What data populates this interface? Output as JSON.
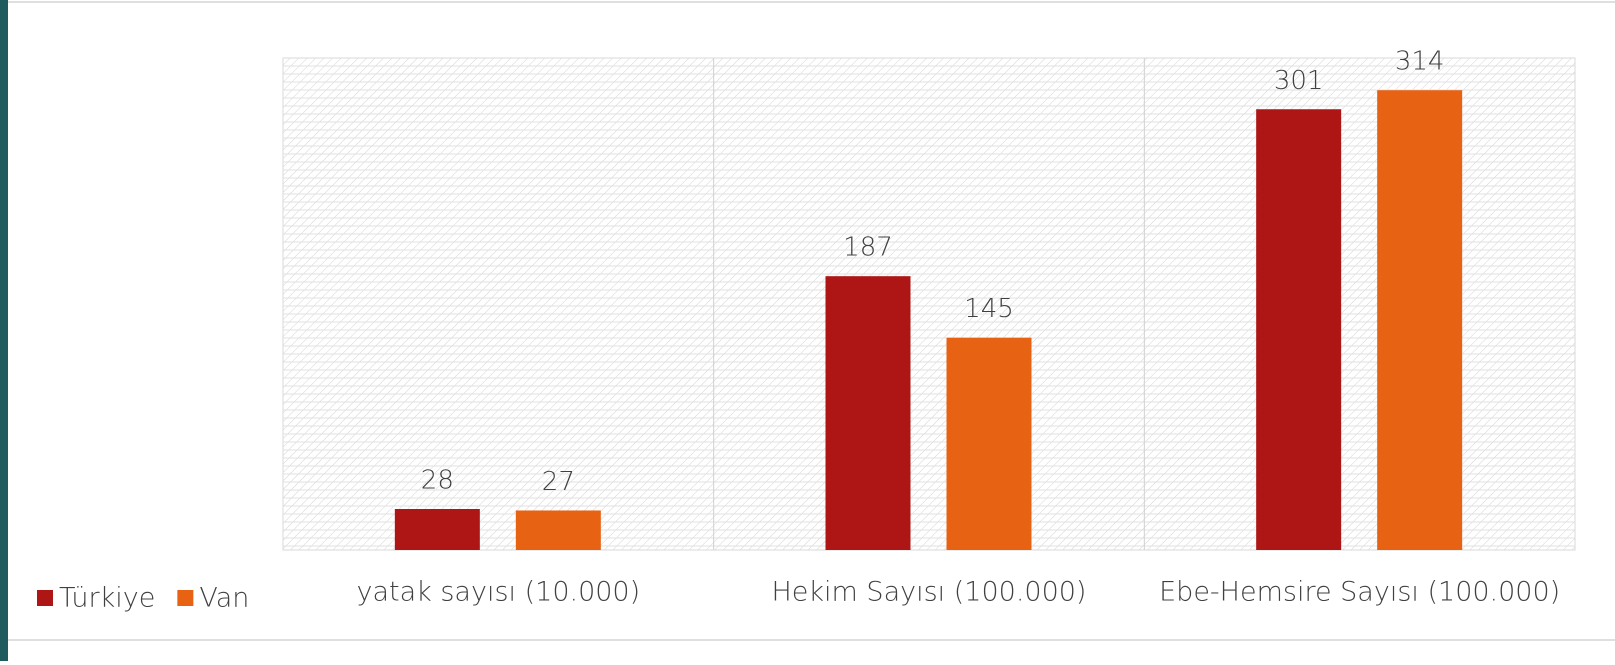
{
  "chart_data": {
    "type": "bar",
    "categories": [
      "yatak sayısı (10.000)",
      "Hekim Sayısı (100.000)",
      "Ebe-Hemsire Sayısı (100.000)"
    ],
    "series": [
      {
        "name": "Türkiye",
        "color": "#ae1515",
        "values": [
          28,
          187,
          301
        ]
      },
      {
        "name": "Van",
        "color": "#e86214",
        "values": [
          27,
          145,
          314
        ]
      }
    ],
    "ylim": [
      0,
      336
    ],
    "legend": "bottom-left"
  }
}
